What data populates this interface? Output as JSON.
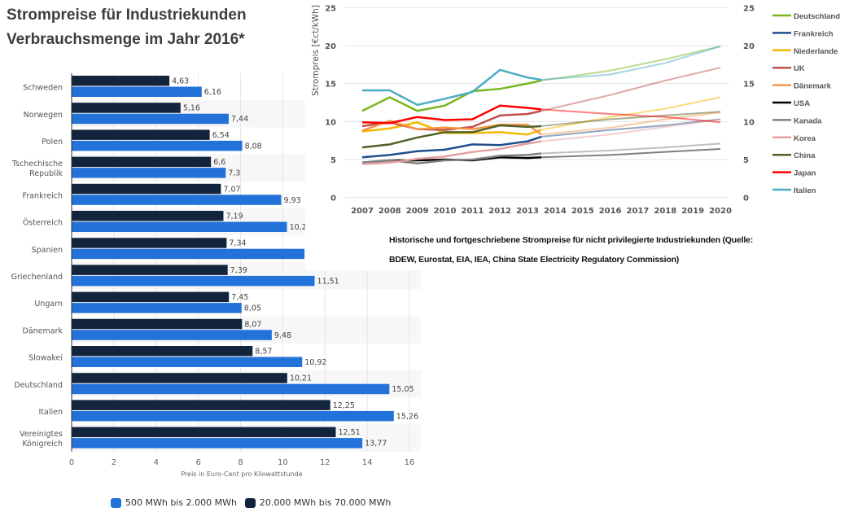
{
  "title": {
    "line1": "Strompreise für Industriekunden",
    "line2": "Verbrauchsmenge im Jahr 2016*"
  },
  "caption": {
    "line1": "Historische und fortgeschriebene Strompreise für nicht privilegierte Industriekunden (Quelle:",
    "line2": "BDEW, Eurostat, EIA, IEA, China State Electricity Regulatory Commission)"
  },
  "chart_data": [
    {
      "type": "bar",
      "orientation": "horizontal",
      "categories": [
        "Schweden",
        "Norwegen",
        "Polen",
        "Tschechische Republik",
        "Frankreich",
        "Österreich",
        "Spanien",
        "Griechenland",
        "Ungarn",
        "Dänemark",
        "Slowakei",
        "Deutschland",
        "Italien",
        "Vereinigtes Königreich"
      ],
      "category_lines": [
        [
          "Schweden"
        ],
        [
          "Norwegen"
        ],
        [
          "Polen"
        ],
        [
          "Tschechische",
          "Republik"
        ],
        [
          "Frankreich"
        ],
        [
          "Österreich"
        ],
        [
          "Spanien"
        ],
        [
          "Griechenland"
        ],
        [
          "Ungarn"
        ],
        [
          "Dänemark"
        ],
        [
          "Slowakei"
        ],
        [
          "Deutschland"
        ],
        [
          "Italien"
        ],
        [
          "Vereinigtes",
          "Königreich"
        ]
      ],
      "series": [
        {
          "name": "20.000 MWh bis 70.000 MWh",
          "color": "#13253d",
          "values": [
            4.63,
            5.16,
            6.54,
            6.6,
            7.07,
            7.19,
            7.34,
            7.39,
            7.45,
            8.07,
            8.57,
            10.21,
            12.25,
            12.51
          ],
          "labels": [
            "4,63",
            "5,16",
            "6,54",
            "6,6",
            "7,07",
            "7,19",
            "7,34",
            "7,39",
            "7,45",
            "8,07",
            "8,57",
            "10,21",
            "12,25",
            "12,51"
          ]
        },
        {
          "name": "500 MWh bis 2.000 MWh",
          "color": "#2372d9",
          "values": [
            6.16,
            7.44,
            8.08,
            7.3,
            9.93,
            10.2,
            11.03,
            11.51,
            8.05,
            9.48,
            10.92,
            15.05,
            15.26,
            13.77
          ],
          "labels": [
            "6,16",
            "7,44",
            "8,08",
            "7,3",
            "9,93",
            "10,2",
            "",
            "11,51",
            "8,05",
            "9,48",
            "10,92",
            "15,05",
            "15,26",
            "13,77"
          ]
        }
      ],
      "xlabel": "Preis in Euro-Cent pro Kilowattstunde",
      "xlim": [
        0,
        16
      ],
      "xticks": [
        "0",
        "2",
        "4",
        "6",
        "8",
        "10",
        "12",
        "14",
        "16"
      ],
      "grid": true,
      "legend": {
        "position": "bottom",
        "order": [
          "500 MWh bis 2.000 MWh",
          "20.000 MWh bis 70.000 MWh"
        ]
      }
    },
    {
      "type": "line",
      "ylabel": "Strompreis [€ct/kWh]",
      "ylim": [
        0,
        25
      ],
      "yticks": [
        "0",
        "5",
        "10",
        "15",
        "20",
        "25"
      ],
      "xticks": [
        "2007",
        "2008",
        "2009",
        "2010",
        "2011",
        "2012",
        "2013",
        "2014",
        "2015",
        "2016",
        "2017",
        "2018",
        "2019",
        "2020"
      ],
      "grid": true,
      "legend": {
        "position": "right"
      },
      "historical_x": [
        2007,
        2008,
        2009,
        2010,
        2011,
        2012,
        2013,
        2013.5
      ],
      "projection_x": [
        2013.5,
        2016,
        2018,
        2020
      ],
      "series": [
        {
          "name": "Deutschland",
          "color": "#7ab51d",
          "historical": [
            11.4,
            13.2,
            11.4,
            12.1,
            14.0,
            14.3,
            15.0,
            15.4
          ],
          "projection": [
            15.4,
            16.7,
            18.2,
            19.9
          ]
        },
        {
          "name": "Frankreich",
          "color": "#1f4e8c",
          "historical": [
            5.3,
            5.6,
            6.1,
            6.3,
            7.0,
            6.9,
            7.4,
            8.0
          ],
          "projection": [
            8.0,
            8.9,
            9.5,
            10.3
          ]
        },
        {
          "name": "Niederlande",
          "color": "#f5b800",
          "historical": [
            8.7,
            9.1,
            9.9,
            8.5,
            8.5,
            8.6,
            8.3,
            8.9
          ],
          "projection": [
            8.9,
            10.6,
            11.7,
            13.2
          ]
        },
        {
          "name": "UK",
          "color": "#c0504d",
          "historical": [
            9.4,
            9.9,
            9.0,
            8.9,
            9.3,
            10.8,
            11.0,
            11.4
          ],
          "projection": [
            11.4,
            13.5,
            15.4,
            17.1
          ]
        },
        {
          "name": "Dänemark",
          "color": "#f79646",
          "historical": [
            8.8,
            10.1,
            9.0,
            9.2,
            9.0,
            9.6,
            9.6,
            8.3
          ],
          "projection": [
            8.3,
            9.2,
            10.3,
            11.2
          ]
        },
        {
          "name": "USA",
          "color": "#000000",
          "historical": [
            4.6,
            4.9,
            4.9,
            5.0,
            4.9,
            5.3,
            5.2,
            5.3
          ],
          "projection": [
            5.3,
            5.6,
            6.0,
            6.4
          ]
        },
        {
          "name": "Kanada",
          "color": "#808080",
          "historical": [
            4.6,
            4.9,
            4.5,
            4.9,
            5.0,
            5.5,
            5.6,
            5.8
          ],
          "projection": [
            5.8,
            6.2,
            6.6,
            7.1
          ]
        },
        {
          "name": "Korea",
          "color": "#e6a0a0",
          "historical": [
            4.4,
            4.6,
            5.1,
            5.4,
            6.0,
            6.4,
            7.1,
            7.4
          ],
          "projection": [
            7.4,
            8.3,
            9.3,
            10.3
          ]
        },
        {
          "name": "China",
          "color": "#4f6228",
          "historical": [
            6.6,
            7.0,
            7.9,
            8.6,
            8.6,
            9.5,
            9.3,
            9.4
          ],
          "projection": [
            9.4,
            10.3,
            10.8,
            11.3
          ]
        },
        {
          "name": "Japan",
          "color": "#ff0000",
          "historical": [
            9.9,
            9.8,
            10.6,
            10.2,
            10.3,
            12.1,
            11.8,
            11.6
          ],
          "projection": [
            11.6,
            11.0,
            10.6,
            9.9
          ]
        },
        {
          "name": "Italien",
          "color": "#4bacc6",
          "historical": [
            14.1,
            14.1,
            12.2,
            13.0,
            13.9,
            16.8,
            15.8,
            15.5
          ],
          "projection": [
            15.5,
            16.2,
            17.7,
            19.9
          ]
        }
      ]
    }
  ]
}
